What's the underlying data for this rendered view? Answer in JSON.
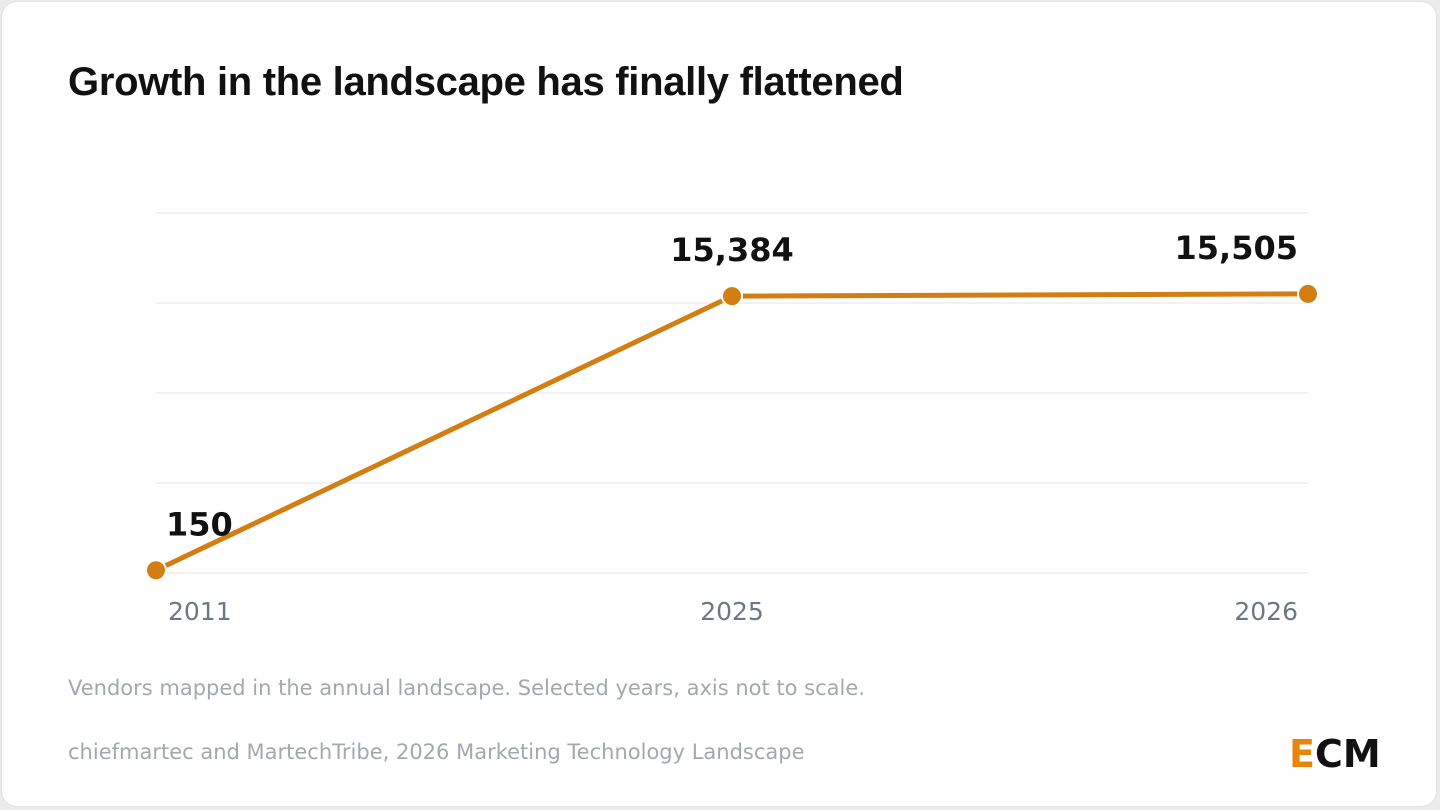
{
  "title": "Growth in the landscape has finally flattened",
  "note": "Vendors mapped in the annual landscape. Selected years, axis not to scale.",
  "source": "chiefmartec and MartechTribe, 2026 Marketing Technology Landscape",
  "logo": {
    "first_letter": "E",
    "rest": "CM"
  },
  "colors": {
    "line": "#d27e12",
    "grid": "#e9e9e9",
    "logo_accent": "#e8860c"
  },
  "chart_data": {
    "type": "line",
    "categories": [
      "2011",
      "2025",
      "2026"
    ],
    "values": [
      150,
      15384,
      15505
    ],
    "value_labels": [
      "150",
      "15,384",
      "15,505"
    ],
    "title": "Growth in the landscape has finally flattened",
    "xlabel": "",
    "ylabel": "",
    "ylim": [
      0,
      20000
    ],
    "grid": true,
    "legend": "none"
  }
}
